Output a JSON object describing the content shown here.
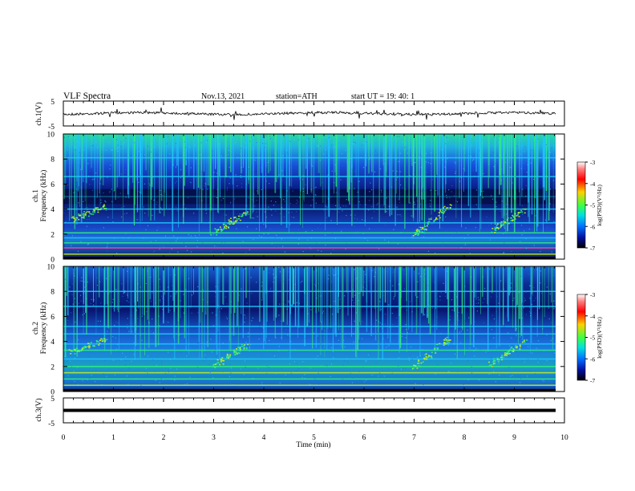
{
  "header": {
    "title": "VLF  Spectra",
    "date": "Nov.13,  2021",
    "station": "station=ATH",
    "start": "start  UT  =    19: 40: 1"
  },
  "chart_data": [
    {
      "type": "line",
      "name": "ch1-waveform",
      "ylabel": "ch.1(V)",
      "ylim": [
        -5,
        5
      ],
      "xlim": [
        0,
        10
      ],
      "y_tick_labels": [
        "5",
        "-5"
      ],
      "description_of_values": "noisy voltage trace near 0 V between x=0 and x≈9.8 min"
    },
    {
      "type": "heatmap",
      "name": "ch1-spectrogram",
      "ylabel": "ch.1\nFrequency  (kHz)",
      "ylim": [
        0,
        10
      ],
      "xlim": [
        0,
        10
      ],
      "y_tick_labels": [
        "0",
        "2",
        "4",
        "6",
        "8",
        "10"
      ],
      "colorbar": {
        "label": "log(PSD)(V²/Hz)",
        "range": [
          -7,
          -3
        ],
        "tick_labels": [
          "-3",
          "-4",
          "-5",
          "-6",
          "-7"
        ]
      }
    },
    {
      "type": "heatmap",
      "name": "ch2-spectrogram",
      "ylabel": "ch.2\nFrequency  (kHz)",
      "ylim": [
        0,
        10
      ],
      "xlim": [
        0,
        10
      ],
      "y_tick_labels": [
        "0",
        "2",
        "4",
        "6",
        "8",
        "10"
      ],
      "colorbar": {
        "label": "log(PSD)(V²/Hz)",
        "range": [
          -7,
          -3
        ],
        "tick_labels": [
          "-3",
          "-4",
          "-5",
          "-6",
          "-7"
        ]
      }
    },
    {
      "type": "line",
      "name": "ch3-waveform",
      "ylabel": "ch.3(V)",
      "ylim": [
        -5,
        5
      ],
      "xlim": [
        0,
        10
      ],
      "y_tick_labels": [
        "5",
        "-5"
      ],
      "x_tick_labels": [
        "0",
        "1",
        "2",
        "3",
        "4",
        "5",
        "6",
        "7",
        "8",
        "9",
        "10"
      ],
      "xlabel": "Time  (min)"
    }
  ],
  "colors": {
    "spec_background": "#000a55",
    "spec_mid": "#1a40d0",
    "spec_bright": "#20c8ff",
    "spec_hot": "#30f080",
    "spec_peak": "#c8f020",
    "line": "#000000"
  }
}
